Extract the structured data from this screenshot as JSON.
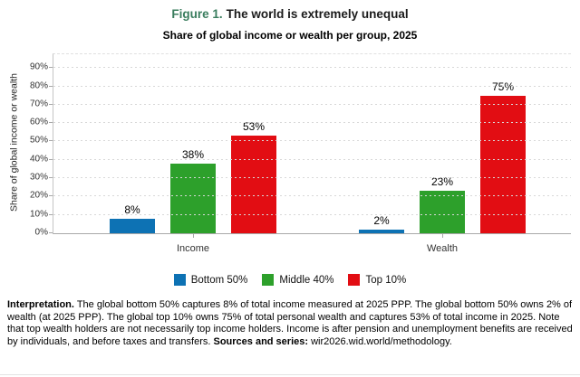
{
  "figure": {
    "title_prefix": "Figure 1.",
    "title_text": "The world is extremely unequal",
    "title_prefix_color": "#3a7d5e"
  },
  "chart_data": {
    "type": "bar",
    "title": "Share of global income or wealth per group, 2025",
    "categories": [
      "Income",
      "Wealth"
    ],
    "series": [
      {
        "name": "Bottom 50%",
        "color": "#0d72b4",
        "values": [
          8,
          2
        ]
      },
      {
        "name": "Middle 40%",
        "color": "#2da02b",
        "values": [
          38,
          23
        ]
      },
      {
        "name": "Top 10%",
        "color": "#e20d13",
        "values": [
          53,
          75
        ]
      }
    ],
    "xlabel": "",
    "ylabel": "Share of global income or wealth",
    "ylim": [
      0,
      97.5
    ],
    "yticks": [
      0,
      10,
      20,
      30,
      40,
      50,
      60,
      70,
      80,
      90
    ],
    "tick_suffix": "%",
    "value_suffix": "%",
    "grid": true,
    "legend_position": "bottom"
  },
  "interpretation": {
    "lead": "Interpretation.",
    "body": "The global bottom 50% captures 8% of total income measured at 2025 PPP. The global bottom 50% owns 2% of wealth (at 2025 PPP). The global top 10% owns 75% of total personal wealth and captures 53% of total income in 2025. Note that top wealth holders are not necessarily top income holders. Income is after pension and unemployment benefits are received by individuals, and before taxes and transfers.",
    "sources_label": "Sources and series:",
    "sources_text": "wir2026.wid.world/methodology."
  }
}
